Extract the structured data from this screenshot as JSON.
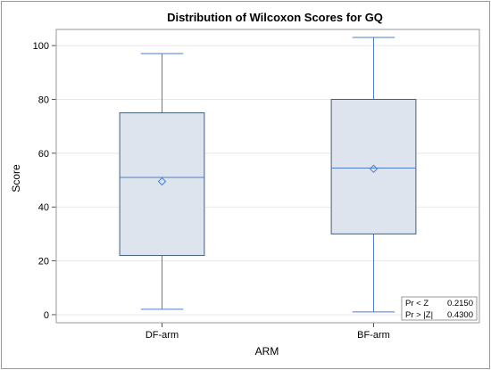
{
  "chart_data": {
    "type": "box",
    "title": "Distribution of Wilcoxon Scores for GQ",
    "xlabel": "ARM",
    "ylabel": "Score",
    "ylim": [
      -3,
      106
    ],
    "yticks": [
      0,
      20,
      40,
      60,
      80,
      100
    ],
    "grid": true,
    "categories": [
      "DF-arm",
      "BF-arm"
    ],
    "boxes": [
      {
        "category": "DF-arm",
        "min": 2,
        "q1": 22,
        "median": 51,
        "mean": 49.5,
        "q3": 75,
        "max": 97
      },
      {
        "category": "BF-arm",
        "min": 1,
        "q1": 30,
        "median": 54.5,
        "mean": 54.2,
        "q3": 80,
        "max": 103
      }
    ],
    "inset_table": [
      {
        "label": "Pr < Z",
        "value": "0.2150"
      },
      {
        "label": "Pr > |Z|",
        "value": "0.4300"
      }
    ],
    "colors": {
      "box_fill": "#dde4ee",
      "box_edge": "#46607a",
      "whisker": "#4f7ec7",
      "grid": "#e8e8e8"
    }
  }
}
